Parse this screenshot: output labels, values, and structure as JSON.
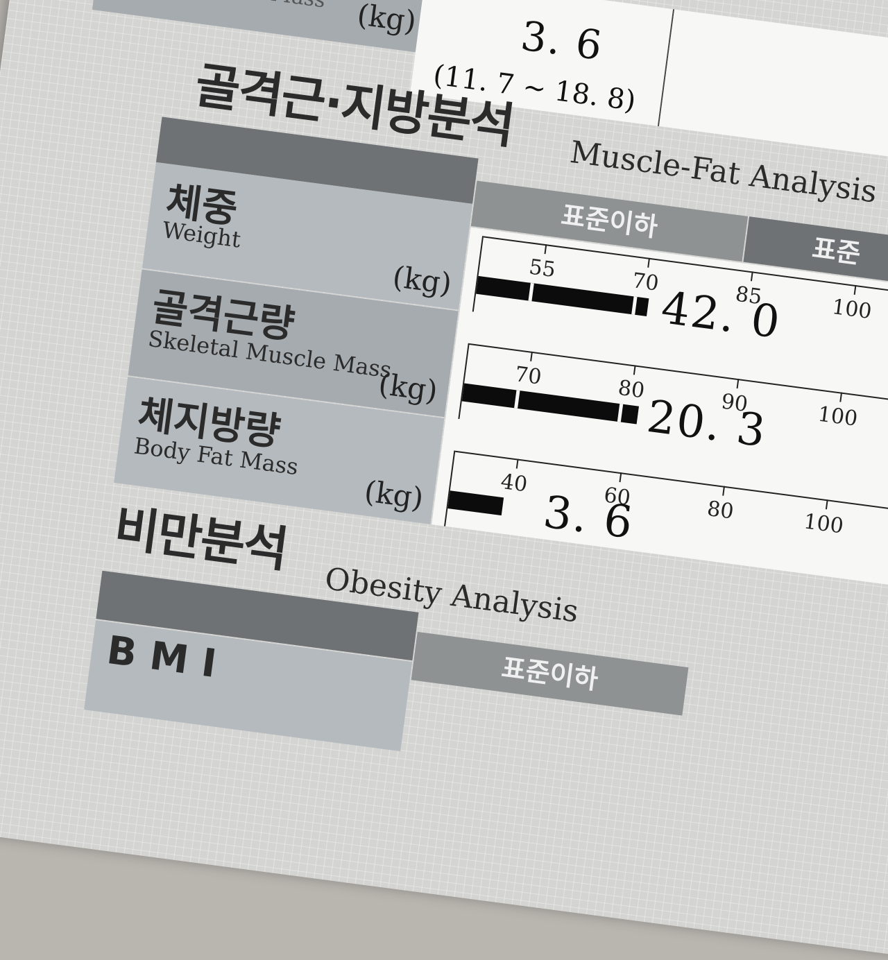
{
  "top_fragment": {
    "label_en": "Mass",
    "unit": "(kg)",
    "value": "3. 6",
    "range": "(11. 7 ~ 18. 8)"
  },
  "muscle_fat": {
    "title_ko": "골격근·지방분석",
    "title_en": "Muscle-Fat Analysis",
    "header_below_standard": "표준이하",
    "header_standard": "표준",
    "rows": [
      {
        "label_ko": "체중",
        "label_en": "Weight",
        "unit": "(kg)",
        "ticks": [
          "55",
          "70",
          "85",
          "100"
        ],
        "value": "42. 0",
        "value_num": 42.0
      },
      {
        "label_ko": "골격근량",
        "label_en": "Skeletal Muscle Mass",
        "unit": "(kg)",
        "ticks": [
          "70",
          "80",
          "90",
          "100"
        ],
        "value": "20. 3",
        "value_num": 20.3
      },
      {
        "label_ko": "체지방량",
        "label_en": "Body Fat Mass",
        "unit": "(kg)",
        "ticks": [
          "40",
          "60",
          "80",
          "100"
        ],
        "value": "3. 6",
        "value_num": 3.6
      }
    ]
  },
  "obesity": {
    "title_ko": "비만분석",
    "title_en": "Obesity Analysis",
    "header_below_standard": "표준이하",
    "row_label_partial": "B M I"
  }
}
